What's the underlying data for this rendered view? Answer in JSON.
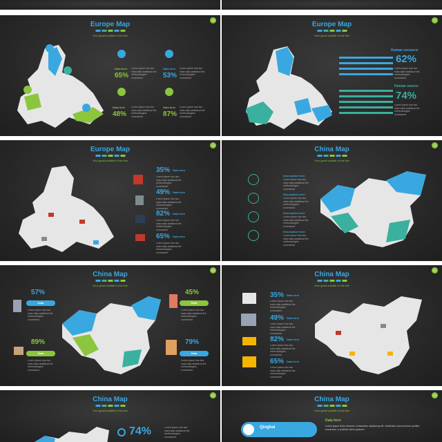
{
  "colors": {
    "blue": "#3aa8e0",
    "green": "#8cc63f",
    "teal": "#3ab09e",
    "map": "#e6e6e6",
    "dark": "#2b2b2b"
  },
  "slides": [
    {
      "num": "76",
      "title": "Europe Map",
      "subtitle": "Your great subtitle in this line",
      "items": [
        {
          "pct": "65%",
          "label": "Data here",
          "color": "green"
        },
        {
          "pct": "53%",
          "label": "Data here",
          "color": "blue"
        },
        {
          "pct": "48%",
          "label": "Data here",
          "color": "green"
        },
        {
          "pct": "87%",
          "label": "Data here",
          "color": "green"
        }
      ]
    },
    {
      "num": "77",
      "title": "Europe Map",
      "subtitle": "Your great subtitle in this line",
      "items": [
        {
          "heading": "Human resource",
          "pct": "62%"
        },
        {
          "heading": "Human source",
          "pct": "74%"
        }
      ]
    },
    {
      "num": "78",
      "title": "Europe Map",
      "subtitle": "Your great subtitle in this line",
      "items": [
        {
          "pct": "35%",
          "label": "Data here"
        },
        {
          "pct": "49%",
          "label": "Data here"
        },
        {
          "pct": "82%",
          "label": "Data here"
        },
        {
          "pct": "65%",
          "label": "Data here"
        }
      ]
    },
    {
      "num": "79",
      "title": "China Map",
      "subtitle": "Your great subtitle in this line",
      "items": [
        {
          "label": "Description here"
        },
        {
          "label": "Description here"
        },
        {
          "label": "Description here"
        },
        {
          "label": "Description here"
        }
      ]
    },
    {
      "num": "80",
      "title": "China Map",
      "subtitle": "Your great subtitle in this line",
      "items": [
        {
          "pct": "57%",
          "label": "Data"
        },
        {
          "pct": "45%",
          "label": "Data"
        },
        {
          "pct": "89%",
          "label": "Data"
        },
        {
          "pct": "79%",
          "label": "Data"
        }
      ]
    },
    {
      "num": "81",
      "title": "China Map",
      "subtitle": "Your great subtitle in this line",
      "items": [
        {
          "pct": "35%",
          "label": "Data here"
        },
        {
          "pct": "49%",
          "label": "Data here"
        },
        {
          "pct": "82%",
          "label": "Data here"
        },
        {
          "pct": "65%",
          "label": "Data here"
        }
      ]
    },
    {
      "num": "82",
      "title": "China Map",
      "subtitle": "Your great subtitle in this line",
      "items": [
        {
          "pct": "74%"
        }
      ]
    },
    {
      "num": "83",
      "title": "China Map",
      "subtitle": "Your great subtitle in this line",
      "items": [
        {
          "label": "Qinghai"
        },
        {
          "label": "Data here"
        }
      ]
    }
  ],
  "body_text": "Lorem ipsum has two main data statistical the methodologies summarize.",
  "body_text2": "Lorem ipsum dolor sit amet, consectetur adipiscing elit. Vestibulum ipsum lectus porttitor accumsan, a pulvinar lorem posuere."
}
